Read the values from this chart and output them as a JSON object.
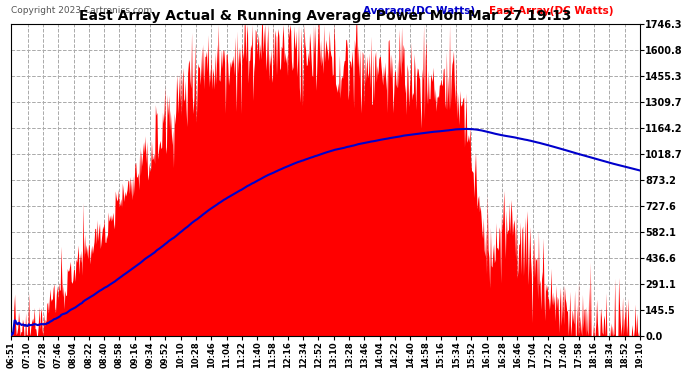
{
  "title": "East Array Actual & Running Average Power Mon Mar 27 19:13",
  "copyright": "Copyright 2023 Cartronics.com",
  "legend_avg": "Average(DC Watts)",
  "legend_east": "East Array(DC Watts)",
  "yticks": [
    0.0,
    145.5,
    291.1,
    436.6,
    582.1,
    727.6,
    873.2,
    1018.7,
    1164.2,
    1309.7,
    1455.3,
    1600.8,
    1746.3
  ],
  "ymax": 1746.3,
  "ymin": 0.0,
  "bg_color": "#ffffff",
  "plot_bg": "#ffffff",
  "grid_color": "#aaaaaa",
  "east_color": "#ff0000",
  "avg_color": "#0000cc",
  "title_color": "#000000",
  "copyright_color": "#555555",
  "legend_avg_color": "#0000cc",
  "legend_east_color": "#ff0000",
  "xtick_labels": [
    "06:51",
    "07:10",
    "07:28",
    "07:46",
    "08:04",
    "08:22",
    "08:40",
    "08:58",
    "09:16",
    "09:34",
    "09:52",
    "10:10",
    "10:28",
    "10:46",
    "11:04",
    "11:22",
    "11:40",
    "11:58",
    "12:16",
    "12:34",
    "12:52",
    "13:10",
    "13:28",
    "13:46",
    "14:04",
    "14:22",
    "14:40",
    "14:58",
    "15:16",
    "15:34",
    "15:52",
    "16:10",
    "16:28",
    "16:46",
    "17:04",
    "17:22",
    "17:40",
    "17:58",
    "18:16",
    "18:34",
    "18:52",
    "19:10"
  ]
}
